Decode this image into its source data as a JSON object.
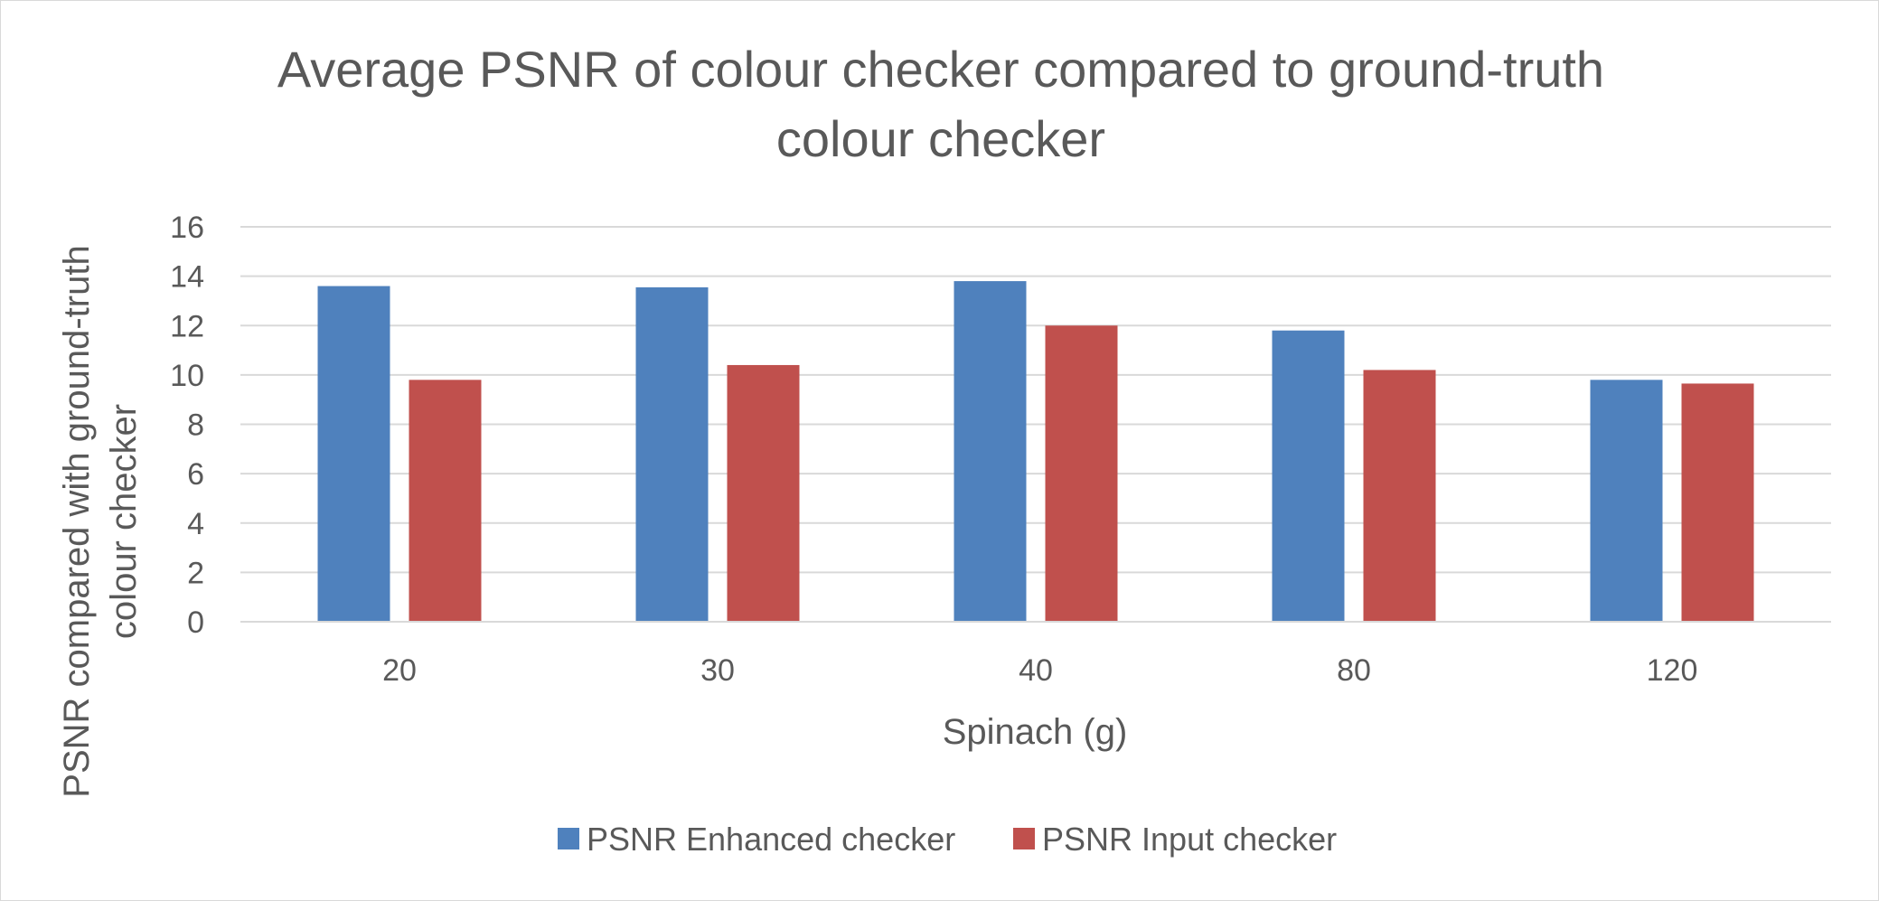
{
  "chart_data": {
    "type": "bar",
    "title": "Average PSNR of colour checker compared to ground-truth colour checker",
    "title_lines": [
      "Average PSNR of colour checker compared to ground-truth",
      "colour checker"
    ],
    "xlabel": "Spinach (g)",
    "ylabel": "PSNR compared with ground-truth colour checker",
    "ylabel_lines": [
      "PSNR compared with ground-truth",
      "colour checker"
    ],
    "categories": [
      "20",
      "30",
      "40",
      "80",
      "120"
    ],
    "ylim": [
      0,
      16
    ],
    "yticks": [
      0,
      2,
      4,
      6,
      8,
      10,
      12,
      14,
      16
    ],
    "grid": true,
    "legend_position": "bottom",
    "series": [
      {
        "name": "PSNR Enhanced checker",
        "color": "#4f81bd",
        "values": [
          13.6,
          13.55,
          13.8,
          11.8,
          9.8
        ]
      },
      {
        "name": "PSNR Input checker",
        "color": "#c0504d",
        "values": [
          9.8,
          10.4,
          12.0,
          10.2,
          9.65
        ]
      }
    ]
  }
}
